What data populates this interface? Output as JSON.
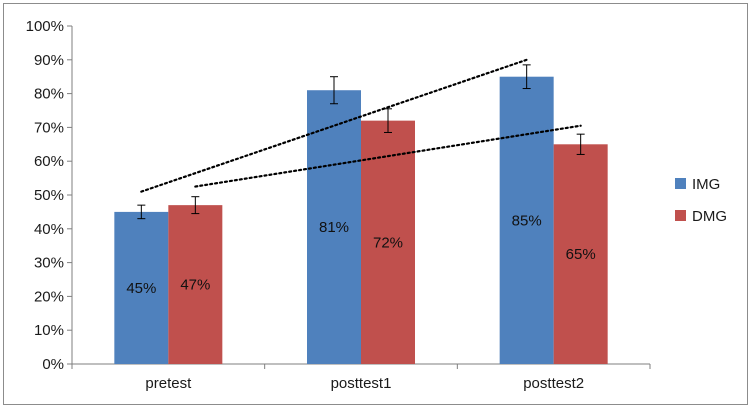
{
  "chart_data": {
    "type": "bar",
    "title": "",
    "xlabel": "",
    "ylabel": "",
    "categories": [
      "pretest",
      "posttest1",
      "posttest2"
    ],
    "series": [
      {
        "name": "IMG",
        "color": "#4f81bd",
        "values": [
          45,
          81,
          85
        ],
        "labels": [
          "45%",
          "81%",
          "85%"
        ],
        "error": [
          2,
          4,
          3.5
        ]
      },
      {
        "name": "DMG",
        "color": "#c0504d",
        "values": [
          47,
          72,
          65
        ],
        "labels": [
          "47%",
          "72%",
          "65%"
        ],
        "error": [
          2.5,
          3.5,
          3
        ]
      }
    ],
    "ylim": [
      0,
      100
    ],
    "yticks": [
      0,
      10,
      20,
      30,
      40,
      50,
      60,
      70,
      80,
      90,
      100
    ],
    "ytick_labels": [
      "0%",
      "10%",
      "20%",
      "30%",
      "40%",
      "50%",
      "60%",
      "70%",
      "80%",
      "90%",
      "100%"
    ],
    "grid": false,
    "legend_position": "right",
    "trendlines": [
      {
        "series": "IMG",
        "style": "dotted",
        "start_value": 51,
        "end_value": 90
      },
      {
        "series": "DMG",
        "style": "dotted",
        "start_value": 52.5,
        "end_value": 70.5
      }
    ]
  }
}
